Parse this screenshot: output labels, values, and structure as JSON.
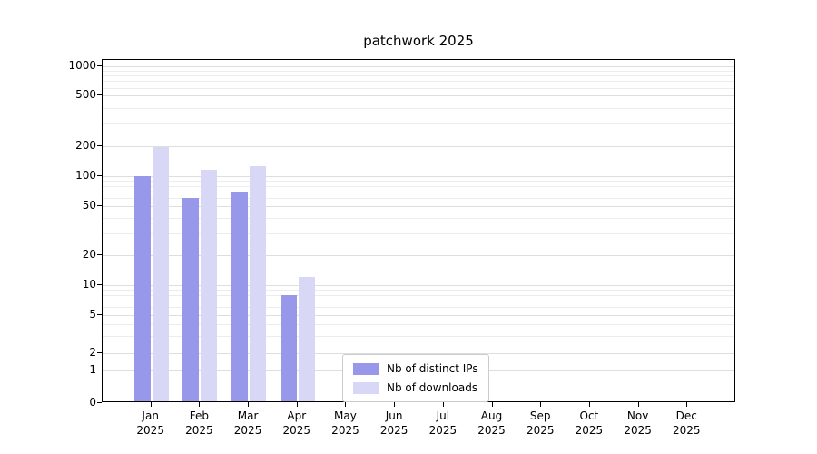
{
  "chart_data": {
    "type": "bar",
    "title": "patchwork 2025",
    "year": "2025",
    "categories": [
      "Jan",
      "Feb",
      "Mar",
      "Apr",
      "May",
      "Jun",
      "Jul",
      "Aug",
      "Sep",
      "Oct",
      "Nov",
      "Dec"
    ],
    "series": [
      {
        "name": "Nb of distinct IPs",
        "color": "#9898ea",
        "values": [
          100,
          60,
          70,
          8,
          0,
          0,
          0,
          0,
          0,
          0,
          0,
          0
        ]
      },
      {
        "name": "Nb of downloads",
        "color": "#d8d8f6",
        "values": [
          195,
          115,
          125,
          12,
          0,
          0,
          0,
          0,
          0,
          0,
          0,
          0
        ]
      }
    ],
    "yticks": [
      0,
      1,
      2,
      5,
      10,
      20,
      50,
      100,
      200,
      500,
      1000
    ],
    "ylim": [
      0,
      1000
    ],
    "yscale": "symlog",
    "grid": "horizontal-minor-and-major",
    "legend_position": "lower center",
    "xlabel": "",
    "ylabel": ""
  }
}
